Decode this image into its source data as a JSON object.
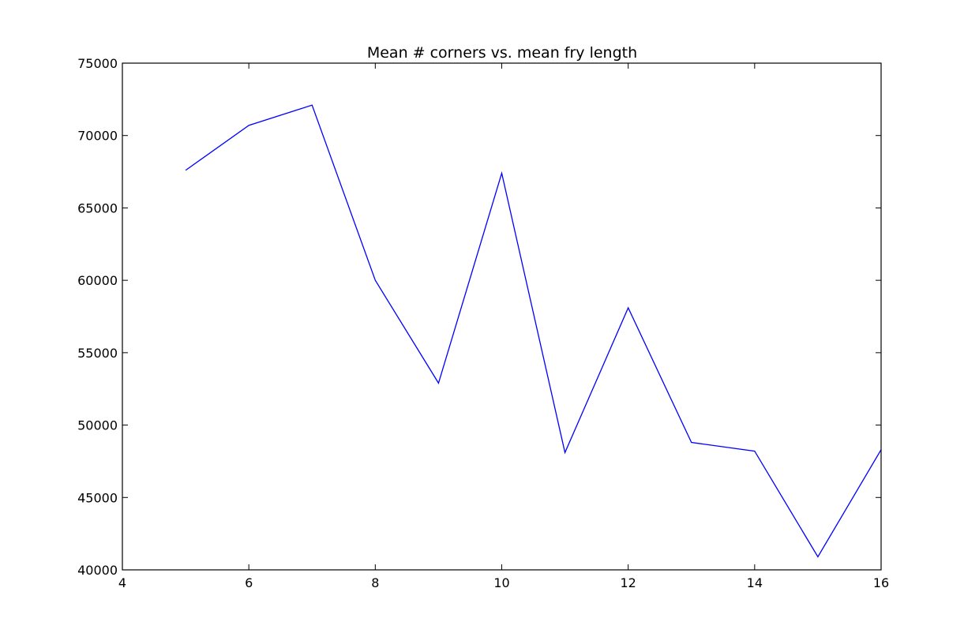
{
  "chart_data": {
    "type": "line",
    "title": "Mean # corners vs. mean fry length",
    "xlabel": "",
    "ylabel": "",
    "xlim": [
      4,
      16
    ],
    "ylim": [
      40000,
      75000
    ],
    "xticks": [
      4,
      6,
      8,
      10,
      12,
      14,
      16
    ],
    "yticks": [
      40000,
      45000,
      50000,
      55000,
      60000,
      65000,
      70000,
      75000
    ],
    "grid": false,
    "legend": "none",
    "series": [
      {
        "color": "#0000ff",
        "x": [
          5,
          6,
          7,
          8,
          9,
          10,
          11,
          12,
          13,
          14,
          15,
          16
        ],
        "y": [
          67600,
          70700,
          72100,
          60000,
          52900,
          67400,
          48100,
          58100,
          48800,
          48200,
          40900,
          48300
        ]
      }
    ]
  }
}
